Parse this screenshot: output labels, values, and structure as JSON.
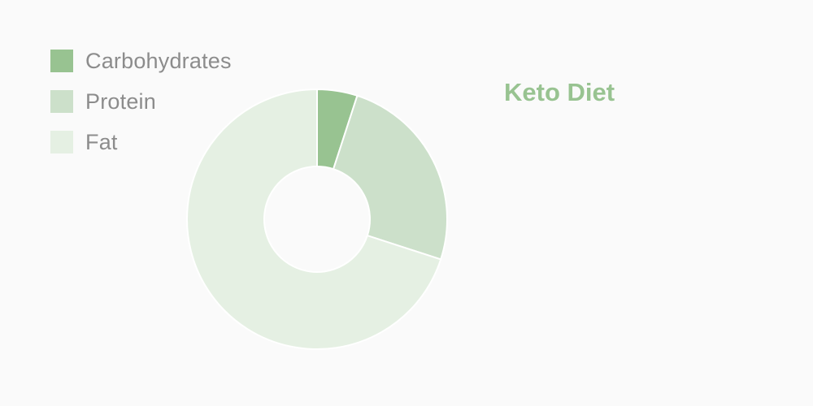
{
  "chart_data": {
    "type": "pie",
    "title": "Keto Diet",
    "donut": true,
    "legend_position": "top-left",
    "slices": [
      {
        "label": "Carbohydrates",
        "value": 5,
        "color": "#98c391"
      },
      {
        "label": "Protein",
        "value": 25,
        "color": "#cce0ca"
      },
      {
        "label": "Fat",
        "value": 70,
        "color": "#e5f0e3"
      }
    ]
  },
  "title_color": "#98c391"
}
